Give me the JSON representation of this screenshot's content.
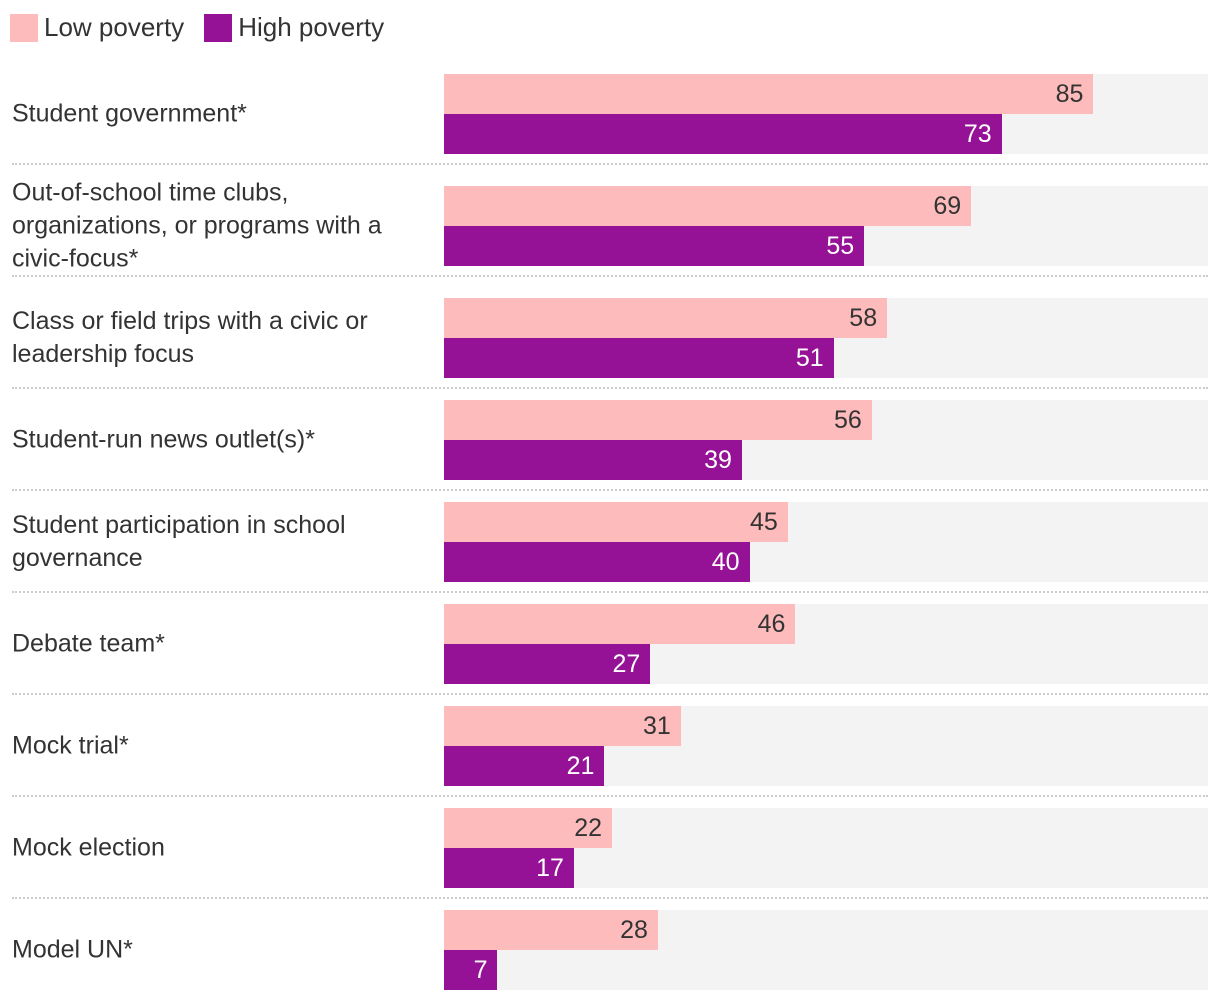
{
  "chart_data": {
    "type": "bar",
    "orientation": "horizontal",
    "xlim": [
      0,
      100
    ],
    "legend_placement": "top-left",
    "colors": {
      "Low poverty": "#fdbbbb",
      "High poverty": "#951196",
      "track": "#f3f3f3"
    },
    "categories": [
      "Student government*",
      "Out-of-school time clubs, organizations, or programs with a civic-focus*",
      "Class or field trips with a civic or leadership focus",
      "Student-run news outlet(s)*",
      "Student participation in school governance",
      "Debate team*",
      "Mock trial*",
      "Mock election",
      "Model UN*"
    ],
    "series": [
      {
        "name": "Low poverty",
        "values": [
          85,
          69,
          58,
          56,
          45,
          46,
          31,
          22,
          28
        ]
      },
      {
        "name": "High poverty",
        "values": [
          73,
          55,
          51,
          39,
          40,
          27,
          21,
          17,
          7
        ]
      }
    ]
  }
}
